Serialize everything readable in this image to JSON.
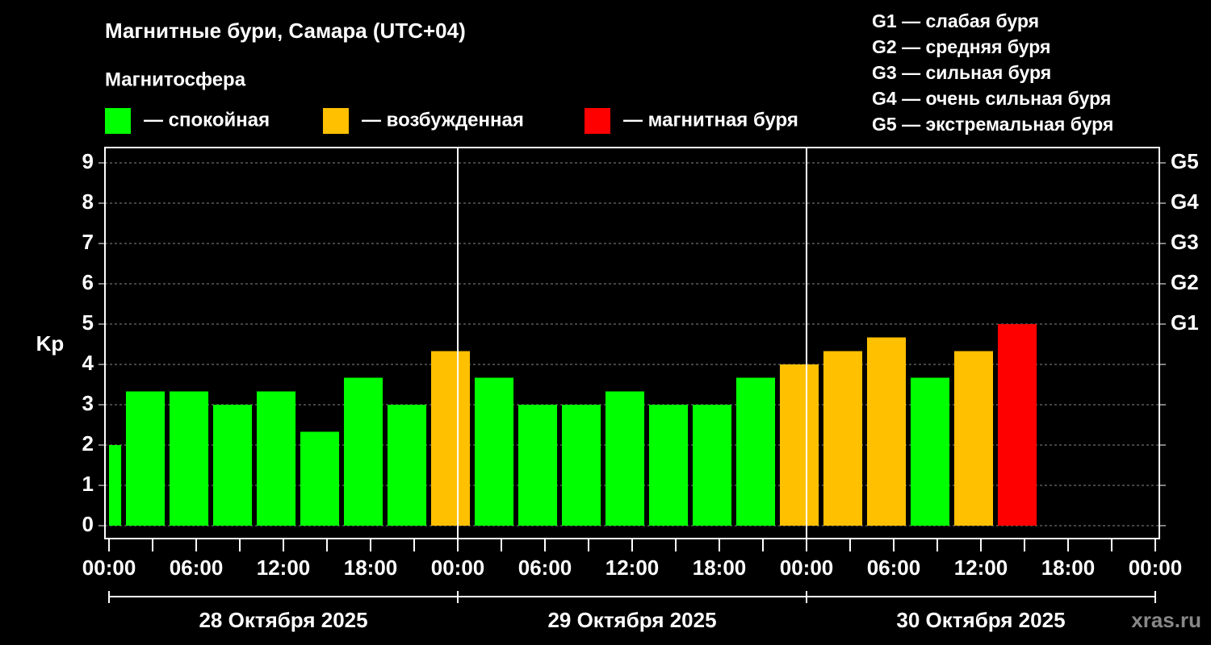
{
  "chart_data": {
    "type": "bar",
    "title": "Магнитные бури, Самара (UTC+04)",
    "legend_title": "Магнитосфера",
    "legend": [
      {
        "label": "— спокойная",
        "color": "#00ff00"
      },
      {
        "label": "— возбужденная",
        "color": "#ffc000"
      },
      {
        "label": "— магнитная буря",
        "color": "#ff0000"
      }
    ],
    "scale_notes": [
      "G1 — слабая буря",
      "G2 — средняя буря",
      "G3 — сильная буря",
      "G4 — очень сильная буря",
      "G5 — экстремальная буря"
    ],
    "y_label": "Kp",
    "watermark": "xras.ru",
    "x": [
      -0.5,
      2.5,
      5.5,
      8.5,
      11.5,
      14.5,
      17.5,
      20.5,
      23.5,
      26.5,
      29.5,
      32.5,
      35.5,
      38.5,
      41.5,
      44.5,
      47.5,
      50.5,
      53.5,
      56.5,
      59.5,
      62.5
    ],
    "series": [
      {
        "values": [
          2,
          3.33,
          3.33,
          3,
          3.33,
          2.33,
          3.67,
          3,
          4.33,
          3.67,
          3,
          3,
          3.33,
          3,
          3,
          3.67,
          4,
          4.33,
          4.67,
          3.67,
          4.33,
          5
        ],
        "colors": [
          "#00ff00",
          "#00ff00",
          "#00ff00",
          "#00ff00",
          "#00ff00",
          "#00ff00",
          "#00ff00",
          "#00ff00",
          "#ffc000",
          "#00ff00",
          "#00ff00",
          "#00ff00",
          "#00ff00",
          "#00ff00",
          "#00ff00",
          "#00ff00",
          "#ffc000",
          "#ffc000",
          "#ffc000",
          "#00ff00",
          "#ffc000",
          "#ff0000"
        ]
      }
    ],
    "xlim": [
      -0.28,
      72.28
    ],
    "xticks": [
      {
        "value": 0,
        "label": "00:00"
      },
      {
        "value": 6,
        "label": "06:00"
      },
      {
        "value": 12,
        "label": "12:00"
      },
      {
        "value": 18,
        "label": "18:00"
      },
      {
        "value": 24,
        "label": "00:00"
      },
      {
        "value": 30,
        "label": "06:00"
      },
      {
        "value": 36,
        "label": "12:00"
      },
      {
        "value": 42,
        "label": "18:00"
      },
      {
        "value": 48,
        "label": "00:00"
      },
      {
        "value": 54,
        "label": "06:00"
      },
      {
        "value": 60,
        "label": "12:00"
      },
      {
        "value": 66,
        "label": "18:00"
      },
      {
        "value": 72,
        "label": "00:00"
      }
    ],
    "day_edges": [
      0,
      24,
      48,
      72
    ],
    "day_labels": [
      {
        "value": 12,
        "label": "28 Октября 2025"
      },
      {
        "value": 36,
        "label": "29 Октября 2025"
      },
      {
        "value": 60,
        "label": "30 Октября 2025"
      }
    ],
    "ylim": [
      -0.32,
      9.38
    ],
    "yticks": [
      0,
      1,
      2,
      3,
      4,
      5,
      6,
      7,
      8,
      9
    ],
    "y2lim": [
      -0.32,
      9.38
    ],
    "y2ticks": [
      {
        "value": 5,
        "label": "G1"
      },
      {
        "value": 6,
        "label": "G2"
      },
      {
        "value": 7,
        "label": "G3"
      },
      {
        "value": 8,
        "label": "G4"
      },
      {
        "value": 9,
        "label": "G5"
      }
    ],
    "grid": true
  }
}
